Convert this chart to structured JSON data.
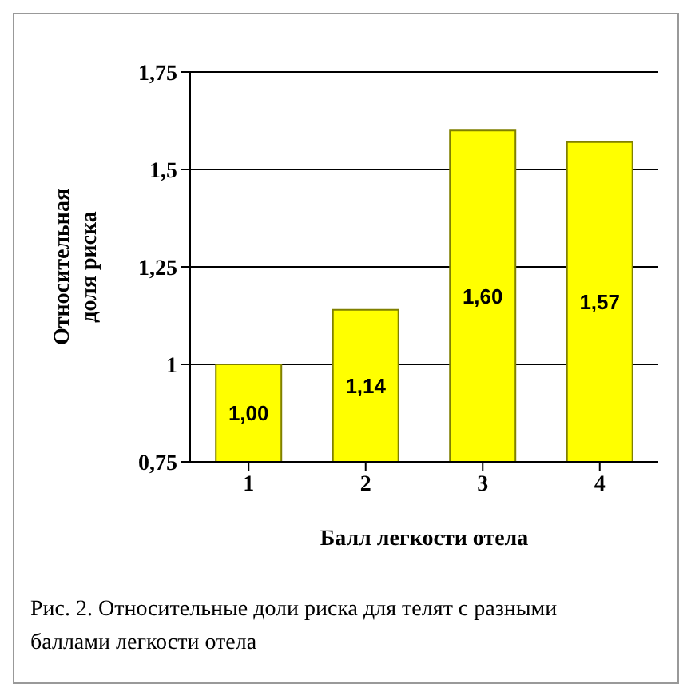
{
  "chart_data": {
    "type": "bar",
    "categories": [
      "1",
      "2",
      "3",
      "4"
    ],
    "values": [
      1.0,
      1.14,
      1.6,
      1.57
    ],
    "value_labels": [
      "1,00",
      "1,14",
      "1,60",
      "1,57"
    ],
    "color": "#ffff00",
    "ylim": [
      0.75,
      1.75
    ],
    "yticks": [
      {
        "value": 0.75,
        "label": "0,75"
      },
      {
        "value": 1,
        "label": "1"
      },
      {
        "value": 1.25,
        "label": "1,25"
      },
      {
        "value": 1.5,
        "label": "1,5"
      },
      {
        "value": 1.75,
        "label": "1,75"
      }
    ],
    "grid": "y",
    "xlabel": "Балл легкости отела",
    "ylabel": "Относительная доля риска",
    "annotations": [
      "Рис. 2. Относительные доли риска для телят с разными баллами легкости отела"
    ]
  }
}
